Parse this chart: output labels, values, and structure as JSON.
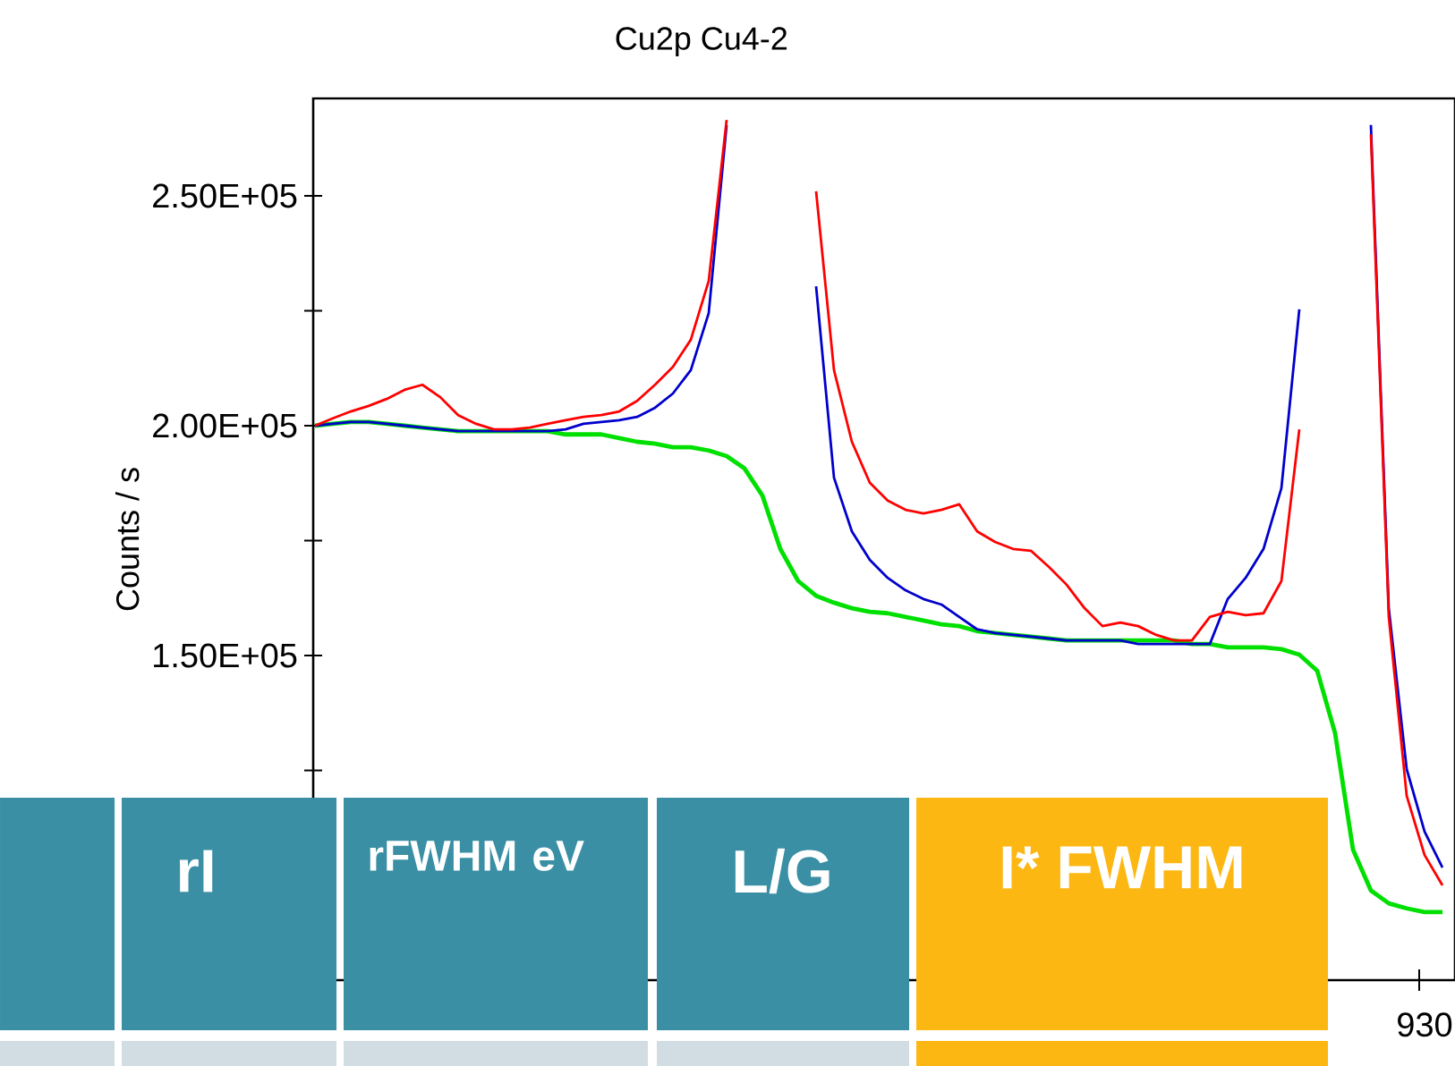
{
  "chart_data": {
    "type": "line",
    "title": "Cu2p Cu4-2",
    "ylabel": "Counts / s",
    "categories": [
      null,
      null,
      null,
      null,
      null,
      null,
      null,
      null,
      null,
      null,
      null,
      null,
      null,
      null,
      null,
      null,
      null,
      null,
      null,
      null,
      null,
      null,
      null,
      null,
      null,
      null,
      null,
      null,
      null,
      null,
      null,
      null,
      null,
      null,
      null,
      null,
      null,
      null,
      null,
      null,
      null,
      null,
      null,
      null,
      null,
      null,
      null,
      null,
      null,
      null,
      null,
      null,
      null,
      null,
      null,
      null,
      null,
      null,
      null,
      null,
      null,
      null,
      null,
      null
    ],
    "series": [
      {
        "color": "#00e000",
        "values": [
          200000,
          200400,
          200800,
          200800,
          200400,
          200000,
          199600,
          199200,
          198800,
          198800,
          198800,
          198800,
          198800,
          198800,
          198100,
          198100,
          198100,
          197300,
          196500,
          196100,
          195300,
          195300,
          194600,
          193400,
          190700,
          184800,
          173200,
          166200,
          163000,
          161500,
          160300,
          159500,
          159200,
          158400,
          157600,
          156800,
          156400,
          155300,
          154900,
          154500,
          154100,
          153700,
          153300,
          153300,
          153300,
          153300,
          153300,
          153300,
          153300,
          152500,
          152500,
          151800,
          151800,
          151800,
          151400,
          150200,
          146700,
          133100,
          107800,
          98900,
          96100,
          95000,
          94200,
          94200
        ]
      },
      {
        "color": "#0000cc",
        "values": [
          200000,
          200400,
          200800,
          200800,
          200400,
          200000,
          199600,
          199200,
          198800,
          198800,
          198800,
          198800,
          198800,
          198800,
          199200,
          200400,
          200800,
          201200,
          201900,
          203900,
          207000,
          212100,
          224500,
          265400,
          null,
          null,
          null,
          null,
          null,
          null,
          null,
          null,
          null,
          null,
          null,
          null,
          null,
          null,
          null,
          null,
          null,
          null,
          null,
          null,
          null,
          null,
          null,
          null,
          null,
          null,
          null,
          null,
          null,
          null,
          null,
          null,
          null,
          null,
          null,
          null,
          null,
          null,
          null,
          null
        ]
      },
      {
        "color": "#0000cc",
        "values": [
          null,
          null,
          null,
          null,
          null,
          null,
          null,
          null,
          null,
          null,
          null,
          null,
          null,
          null,
          null,
          null,
          null,
          null,
          null,
          null,
          null,
          null,
          null,
          null,
          null,
          null,
          null,
          null,
          230300,
          188700,
          177000,
          170800,
          166900,
          164200,
          162300,
          161100,
          158400,
          155700,
          154900,
          154500,
          154100,
          153700,
          153300,
          153300,
          153300,
          153300,
          152500,
          152500,
          152500,
          152500,
          152500,
          162300,
          166900,
          173200,
          186400,
          225300,
          null,
          null,
          null,
          null,
          null,
          null,
          null,
          null
        ]
      },
      {
        "color": "#0000cc",
        "values": [
          null,
          null,
          null,
          null,
          null,
          null,
          null,
          null,
          null,
          null,
          null,
          null,
          null,
          null,
          null,
          null,
          null,
          null,
          null,
          null,
          null,
          null,
          null,
          null,
          null,
          null,
          null,
          null,
          null,
          null,
          null,
          null,
          null,
          null,
          null,
          null,
          null,
          null,
          null,
          null,
          null,
          null,
          null,
          null,
          null,
          null,
          null,
          null,
          null,
          null,
          null,
          null,
          null,
          null,
          null,
          null,
          null,
          null,
          null,
          265400,
          160300,
          125300,
          111700,
          103900
        ]
      },
      {
        "color": "#ff0000",
        "values": [
          200000,
          201600,
          203100,
          204300,
          205800,
          207800,
          208900,
          206200,
          202300,
          200400,
          199200,
          199200,
          199600,
          200400,
          201200,
          201900,
          202300,
          203100,
          205400,
          208900,
          212800,
          218700,
          231500,
          266500,
          null,
          null,
          null,
          null,
          null,
          null,
          null,
          null,
          null,
          null,
          null,
          null,
          null,
          null,
          null,
          null,
          null,
          null,
          null,
          null,
          null,
          null,
          null,
          null,
          null,
          null,
          null,
          null,
          null,
          null,
          null,
          null,
          null,
          null,
          null,
          null,
          null,
          null,
          null,
          null
        ]
      },
      {
        "color": "#ff0000",
        "values": [
          null,
          null,
          null,
          null,
          null,
          null,
          null,
          null,
          null,
          null,
          null,
          null,
          null,
          null,
          null,
          null,
          null,
          null,
          null,
          null,
          null,
          null,
          null,
          null,
          null,
          null,
          null,
          null,
          251000,
          212100,
          196500,
          187600,
          183700,
          181700,
          180900,
          181700,
          182900,
          177000,
          174700,
          173200,
          172800,
          169300,
          165400,
          160300,
          156400,
          157200,
          156400,
          154500,
          153300,
          153300,
          158400,
          159500,
          158800,
          159200,
          166200,
          199200,
          null,
          null,
          null,
          null,
          null,
          null,
          null,
          null
        ]
      },
      {
        "color": "#ff0000",
        "values": [
          null,
          null,
          null,
          null,
          null,
          null,
          null,
          null,
          null,
          null,
          null,
          null,
          null,
          null,
          null,
          null,
          null,
          null,
          null,
          null,
          null,
          null,
          null,
          null,
          null,
          null,
          null,
          null,
          null,
          null,
          null,
          null,
          null,
          null,
          null,
          null,
          null,
          null,
          null,
          null,
          null,
          null,
          null,
          null,
          null,
          null,
          null,
          null,
          null,
          null,
          null,
          null,
          null,
          null,
          null,
          null,
          null,
          null,
          null,
          263400,
          158400,
          119500,
          106600,
          100000
        ]
      }
    ],
    "ylim": [
      79400,
      271200
    ],
    "yticks": [
      {
        "value": 125000,
        "label": null
      },
      {
        "value": 150000,
        "label": "1.50E+05"
      },
      {
        "value": 175000,
        "label": null
      },
      {
        "value": 200000,
        "label": "2.00E+05"
      },
      {
        "value": 225000,
        "label": null
      },
      {
        "value": 250000,
        "label": "2.50E+05"
      }
    ],
    "tick_labels": "y",
    "line_style": "solid",
    "annotations": [
      "rI",
      "rFWHM eV",
      "L/G",
      "I* FWHM",
      "930"
    ]
  }
}
